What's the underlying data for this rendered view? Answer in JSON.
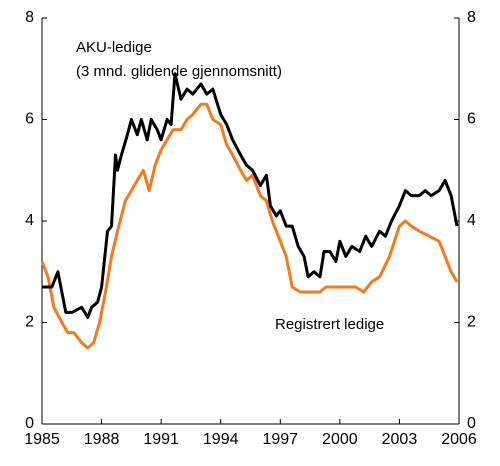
{
  "chart_data": {
    "type": "line",
    "annotations": [
      "AKU-ledige",
      "(3 mnd. glidende gjennomsnitt)",
      "Registrert ledige"
    ],
    "series": [
      {
        "name": "AKU-ledige",
        "color": "#000000",
        "x": [
          1985,
          1985.5,
          1985.8,
          1986.2,
          1986.5,
          1987,
          1987.3,
          1987.5,
          1987.8,
          1988.0,
          1988.3,
          1988.5,
          1988.7,
          1988.8,
          1989.0,
          1989.3,
          1989.5,
          1989.8,
          1990.0,
          1990.3,
          1990.5,
          1990.8,
          1991.0,
          1991.3,
          1991.5,
          1991.7,
          1992.0,
          1992.3,
          1992.6,
          1993.0,
          1993.3,
          1993.6,
          1994.0,
          1994.3,
          1994.6,
          1995.0,
          1995.3,
          1995.6,
          1996.0,
          1996.3,
          1996.5,
          1996.8,
          1997.0,
          1997.3,
          1997.6,
          1997.9,
          1998.2,
          1998.4,
          1998.7,
          1999.0,
          1999.2,
          1999.5,
          1999.8,
          2000.0,
          2000.3,
          2000.6,
          2001.0,
          2001.3,
          2001.6,
          2002.0,
          2002.3,
          2002.6,
          2003.0,
          2003.3,
          2003.6,
          2004.0,
          2004.3,
          2004.6,
          2005.0,
          2005.3,
          2005.6,
          2005.9
        ],
        "values": [
          2.7,
          2.7,
          3.0,
          2.2,
          2.2,
          2.3,
          2.1,
          2.3,
          2.4,
          2.7,
          3.8,
          3.9,
          5.3,
          5.0,
          5.3,
          5.7,
          6.0,
          5.7,
          6.0,
          5.6,
          6.0,
          5.8,
          5.6,
          6.0,
          5.9,
          6.9,
          6.4,
          6.6,
          6.5,
          6.7,
          6.5,
          6.6,
          6.1,
          5.9,
          5.6,
          5.3,
          5.1,
          5.0,
          4.7,
          4.9,
          4.3,
          4.1,
          4.2,
          3.9,
          3.9,
          3.5,
          3.3,
          2.9,
          3.0,
          2.9,
          3.4,
          3.4,
          3.2,
          3.6,
          3.3,
          3.5,
          3.4,
          3.7,
          3.5,
          3.8,
          3.7,
          4.0,
          4.3,
          4.6,
          4.5,
          4.5,
          4.6,
          4.5,
          4.6,
          4.8,
          4.5,
          3.9
        ]
      },
      {
        "name": "Registrert ledige",
        "color": "#f47a1f",
        "x": [
          1985,
          1985.3,
          1985.6,
          1986.0,
          1986.3,
          1986.6,
          1987.0,
          1987.3,
          1987.6,
          1987.9,
          1988.2,
          1988.5,
          1988.8,
          1989.2,
          1989.5,
          1989.8,
          1990.1,
          1990.4,
          1990.7,
          1991.0,
          1991.3,
          1991.6,
          1992.0,
          1992.3,
          1992.6,
          1993.0,
          1993.3,
          1993.6,
          1994.0,
          1994.3,
          1994.6,
          1995.0,
          1995.3,
          1995.6,
          1996.0,
          1996.3,
          1996.6,
          1997.0,
          1997.3,
          1997.6,
          1998.0,
          1998.5,
          1999.0,
          1999.3,
          1999.8,
          2000.3,
          2000.8,
          2001.2,
          2001.6,
          2002.0,
          2002.5,
          2003.0,
          2003.3,
          2003.6,
          2004.0,
          2004.5,
          2005.0,
          2005.3,
          2005.6,
          2005.9
        ],
        "values": [
          3.2,
          2.9,
          2.3,
          2.0,
          1.8,
          1.8,
          1.6,
          1.5,
          1.6,
          2.0,
          2.6,
          3.3,
          3.8,
          4.4,
          4.6,
          4.8,
          5.0,
          4.6,
          5.1,
          5.4,
          5.6,
          5.8,
          5.8,
          6.0,
          6.1,
          6.3,
          6.3,
          6.0,
          5.9,
          5.5,
          5.3,
          5.0,
          4.8,
          4.9,
          4.5,
          4.4,
          4.0,
          3.6,
          3.3,
          2.7,
          2.6,
          2.6,
          2.6,
          2.7,
          2.7,
          2.7,
          2.7,
          2.6,
          2.8,
          2.9,
          3.3,
          3.9,
          4.0,
          3.9,
          3.8,
          3.7,
          3.6,
          3.3,
          3.0,
          2.8
        ]
      }
    ],
    "xlim": [
      1985,
      2006
    ],
    "xticks": [
      1985,
      1988,
      1991,
      1994,
      1997,
      2000,
      2003,
      2006
    ],
    "ylim": [
      0,
      8
    ],
    "yticks": [
      0,
      2,
      4,
      6,
      8
    ],
    "y2lim": [
      0,
      8
    ],
    "y2ticks": [
      0,
      2,
      4,
      6,
      8
    ]
  }
}
